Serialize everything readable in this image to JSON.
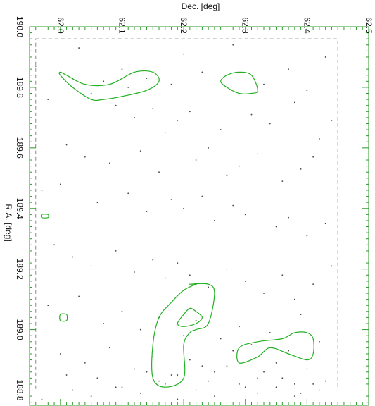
{
  "chart_data": {
    "type": "scatter",
    "title": "",
    "xlabel": "Dec. [deg]",
    "ylabel": "R.A. [deg]",
    "xlim": [
      61.95,
      62.5
    ],
    "ylim": [
      188.75,
      190.0
    ],
    "x_ticks": [
      "62.0",
      "62.1",
      "62.2",
      "62.3",
      "62.4",
      "62.5"
    ],
    "y_ticks": [
      "190.0",
      "189.8",
      "189.6",
      "189.4",
      "189.2",
      "189.0",
      "188.8"
    ],
    "grid": false,
    "colors": {
      "frame": "#2a9a2a",
      "contour": "#22b022",
      "points": "#444444",
      "footprint": "#8a8a8a"
    },
    "footprint_box": {
      "dec": [
        61.96,
        62.45
      ],
      "ra": [
        188.8,
        189.96
      ]
    },
    "contours": [
      {
        "dec": [
          62.0,
          62.01,
          62.04,
          62.08,
          62.12,
          62.15,
          62.16,
          62.14,
          62.1,
          62.07,
          62.05,
          62.02,
          62.0,
          62.0
        ],
        "ra": [
          189.85,
          189.84,
          189.81,
          189.81,
          189.85,
          189.85,
          189.82,
          189.79,
          189.77,
          189.76,
          189.76,
          189.8,
          189.84,
          189.85
        ]
      },
      {
        "dec": [
          62.27,
          62.29,
          62.31,
          62.32,
          62.31,
          62.29,
          62.27,
          62.26,
          62.27
        ],
        "ra": [
          189.84,
          189.85,
          189.84,
          189.79,
          189.78,
          189.78,
          189.8,
          189.82,
          189.84
        ]
      },
      {
        "dec": [
          61.97,
          61.98,
          61.98,
          61.97,
          61.97
        ],
        "ra": [
          189.38,
          189.38,
          189.37,
          189.37,
          189.38
        ]
      },
      {
        "dec": [
          62.0,
          62.01,
          62.01,
          62.0,
          62.0
        ],
        "ra": [
          189.05,
          189.05,
          189.03,
          189.03,
          189.05
        ]
      },
      {
        "dec": [
          62.21,
          62.24,
          62.25,
          62.24,
          62.22,
          62.21,
          62.2,
          62.2,
          62.17,
          62.15,
          62.15,
          62.16,
          62.18,
          62.2,
          62.22,
          62.22,
          62.22,
          62.21
        ],
        "ra": [
          189.15,
          189.15,
          189.12,
          189.02,
          189.0,
          188.99,
          188.95,
          188.84,
          188.81,
          188.84,
          188.95,
          189.04,
          189.09,
          189.13,
          189.15,
          189.15,
          189.15,
          189.15
        ]
      },
      {
        "dec": [
          62.21,
          62.22,
          62.23,
          62.22,
          62.2,
          62.19,
          62.2,
          62.21
        ],
        "ra": [
          189.07,
          189.06,
          189.04,
          189.02,
          189.01,
          189.02,
          189.05,
          189.07
        ]
      },
      {
        "dec": [
          62.36,
          62.38,
          62.4,
          62.41,
          62.41,
          62.4,
          62.37,
          62.34,
          62.32,
          62.29,
          62.29,
          62.32,
          62.36
        ],
        "ra": [
          188.97,
          188.99,
          188.99,
          188.97,
          188.92,
          188.9,
          188.92,
          188.94,
          188.91,
          188.89,
          188.94,
          188.96,
          188.97
        ]
      }
    ],
    "points": {
      "dec": [
        62.03,
        61.96,
        62.02,
        62.07,
        62.11,
        62.1,
        62.14,
        62.18,
        62.2,
        62.23,
        62.28,
        62.33,
        62.37,
        62.4,
        62.43,
        61.98,
        62.05,
        62.09,
        62.12,
        62.15,
        62.17,
        62.19,
        62.21,
        62.26,
        62.31,
        62.34,
        62.38,
        62.42,
        62.44,
        62.01,
        62.04,
        62.08,
        62.13,
        62.16,
        62.22,
        62.24,
        62.27,
        62.29,
        62.32,
        62.36,
        62.39,
        62.41,
        61.97,
        62.0,
        62.06,
        62.11,
        62.14,
        62.18,
        62.2,
        62.23,
        62.25,
        62.28,
        62.3,
        62.35,
        62.37,
        62.4,
        62.43,
        61.99,
        62.02,
        62.05,
        62.09,
        62.12,
        62.15,
        62.17,
        62.19,
        62.21,
        62.24,
        62.27,
        62.3,
        62.33,
        62.36,
        62.38,
        62.41,
        62.44,
        61.98,
        62.03,
        62.07,
        62.1,
        62.13,
        62.16,
        62.2,
        62.22,
        62.26,
        62.29,
        62.31,
        62.34,
        62.37,
        62.39,
        62.42,
        62.0,
        62.04,
        62.08,
        62.12,
        62.15,
        62.18,
        62.21,
        62.23,
        62.25,
        62.28,
        62.32,
        62.35,
        62.38,
        62.4,
        62.43,
        62.02,
        62.06,
        62.1,
        62.14,
        62.17,
        62.19,
        62.22,
        62.24,
        62.27,
        62.3,
        62.33,
        62.36,
        62.39,
        62.41,
        61.97,
        62.01,
        62.05,
        62.09,
        62.13,
        62.16,
        62.19,
        62.22,
        62.25,
        62.29,
        62.32,
        62.35,
        62.38,
        62.42
      ],
      "ra": [
        189.93,
        189.87,
        189.83,
        189.82,
        189.8,
        189.86,
        189.83,
        189.81,
        189.91,
        189.85,
        189.94,
        189.81,
        189.86,
        189.79,
        189.9,
        189.76,
        189.78,
        189.74,
        189.7,
        189.73,
        189.65,
        189.69,
        189.72,
        189.66,
        189.71,
        189.68,
        189.75,
        189.63,
        189.69,
        189.61,
        189.57,
        189.55,
        189.59,
        189.52,
        189.56,
        189.6,
        189.51,
        189.54,
        189.58,
        189.49,
        189.53,
        189.57,
        189.46,
        189.48,
        189.42,
        189.45,
        189.39,
        189.43,
        189.4,
        189.44,
        189.36,
        189.41,
        189.38,
        189.34,
        189.37,
        189.31,
        189.35,
        189.28,
        189.24,
        189.21,
        189.26,
        189.19,
        189.23,
        189.17,
        189.22,
        189.18,
        189.14,
        189.2,
        189.16,
        189.12,
        189.18,
        189.1,
        189.15,
        189.21,
        189.08,
        189.11,
        189.02,
        189.06,
        189.0,
        189.04,
        188.98,
        189.03,
        188.97,
        189.01,
        188.95,
        188.99,
        188.93,
        189.05,
        188.96,
        188.92,
        188.89,
        188.94,
        188.87,
        188.91,
        188.85,
        188.9,
        188.88,
        188.86,
        188.93,
        188.84,
        188.89,
        188.82,
        188.87,
        188.83,
        188.8,
        188.84,
        188.81,
        188.86,
        188.82,
        188.85,
        188.8,
        188.83,
        188.88,
        188.81,
        188.86,
        188.84,
        188.79,
        188.82,
        188.77,
        188.85,
        188.78,
        188.81,
        188.79,
        188.83,
        188.77,
        188.8,
        188.78,
        188.82,
        188.79,
        188.81,
        188.78,
        188.8
      ]
    }
  }
}
